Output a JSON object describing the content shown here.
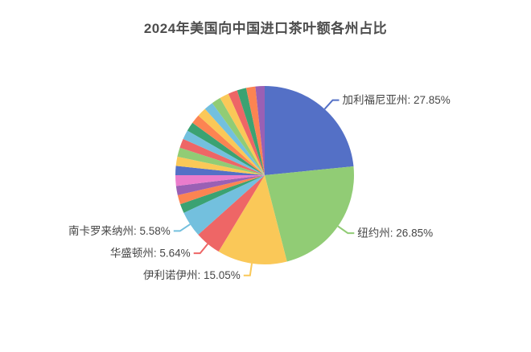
{
  "title": "2024年美国向中国进口茶叶额各州占比",
  "chart_data": {
    "type": "pie",
    "title": "2024年美国向中国进口茶叶额各州占比",
    "legend_position": "none",
    "label_format": "{name}: {value}%",
    "start_angle_deg": 0,
    "clockwise": true,
    "min_angle_deg": 6,
    "labeled_slices": [
      {
        "name": "加利福尼亚州",
        "value": 27.85
      },
      {
        "name": "纽约州",
        "value": 26.85
      },
      {
        "name": "伊利诺伊州",
        "value": 15.05
      },
      {
        "name": "华盛顿州",
        "value": 5.64
      },
      {
        "name": "南卡罗来纳州",
        "value": 5.58
      }
    ],
    "series": [
      {
        "name": "加利福尼亚州",
        "value": 27.85,
        "color": "#5470c6",
        "labeled": true
      },
      {
        "name": "纽约州",
        "value": 26.85,
        "color": "#91cc75",
        "labeled": true
      },
      {
        "name": "伊利诺伊州",
        "value": 15.05,
        "color": "#fac858",
        "labeled": true
      },
      {
        "name": "华盛顿州",
        "value": 5.64,
        "color": "#ee6666",
        "labeled": true
      },
      {
        "name": "南卡罗来纳州",
        "value": 5.58,
        "color": "#73c0de",
        "labeled": true
      },
      {
        "name": "",
        "value": 1.55,
        "color": "#3ba272",
        "labeled": false
      },
      {
        "name": "",
        "value": 1.45,
        "color": "#fc8452",
        "labeled": false
      },
      {
        "name": "",
        "value": 1.4,
        "color": "#9a60b4",
        "labeled": false
      },
      {
        "name": "",
        "value": 2.3,
        "color": "#ea7ccc",
        "labeled": false
      },
      {
        "name": "",
        "value": 1.15,
        "color": "#5470c6",
        "labeled": false
      },
      {
        "name": "",
        "value": 1.0,
        "color": "#fac858",
        "labeled": false
      },
      {
        "name": "",
        "value": 0.95,
        "color": "#91cc75",
        "labeled": false
      },
      {
        "name": "",
        "value": 0.95,
        "color": "#ee6666",
        "labeled": false
      },
      {
        "name": "",
        "value": 0.9,
        "color": "#73c0de",
        "labeled": false
      },
      {
        "name": "",
        "value": 0.85,
        "color": "#3ba272",
        "labeled": false
      },
      {
        "name": "",
        "value": 0.85,
        "color": "#fc8452",
        "labeled": false
      },
      {
        "name": "",
        "value": 0.8,
        "color": "#fac858",
        "labeled": false
      },
      {
        "name": "",
        "value": 0.78,
        "color": "#73c0de",
        "labeled": false
      },
      {
        "name": "",
        "value": 0.75,
        "color": "#91cc75",
        "labeled": false
      },
      {
        "name": "",
        "value": 0.72,
        "color": "#fac858",
        "labeled": false
      },
      {
        "name": "",
        "value": 0.7,
        "color": "#ee6666",
        "labeled": false
      },
      {
        "name": "",
        "value": 0.68,
        "color": "#3ba272",
        "labeled": false
      },
      {
        "name": "",
        "value": 0.65,
        "color": "#fc8452",
        "labeled": false
      },
      {
        "name": "",
        "value": 0.6,
        "color": "#9a60b4",
        "labeled": false
      }
    ],
    "palette": [
      "#5470c6",
      "#91cc75",
      "#fac858",
      "#ee6666",
      "#73c0de",
      "#3ba272",
      "#fc8452",
      "#9a60b4",
      "#ea7ccc"
    ],
    "label_text_color": "#464646",
    "background_color": "#ffffff"
  }
}
